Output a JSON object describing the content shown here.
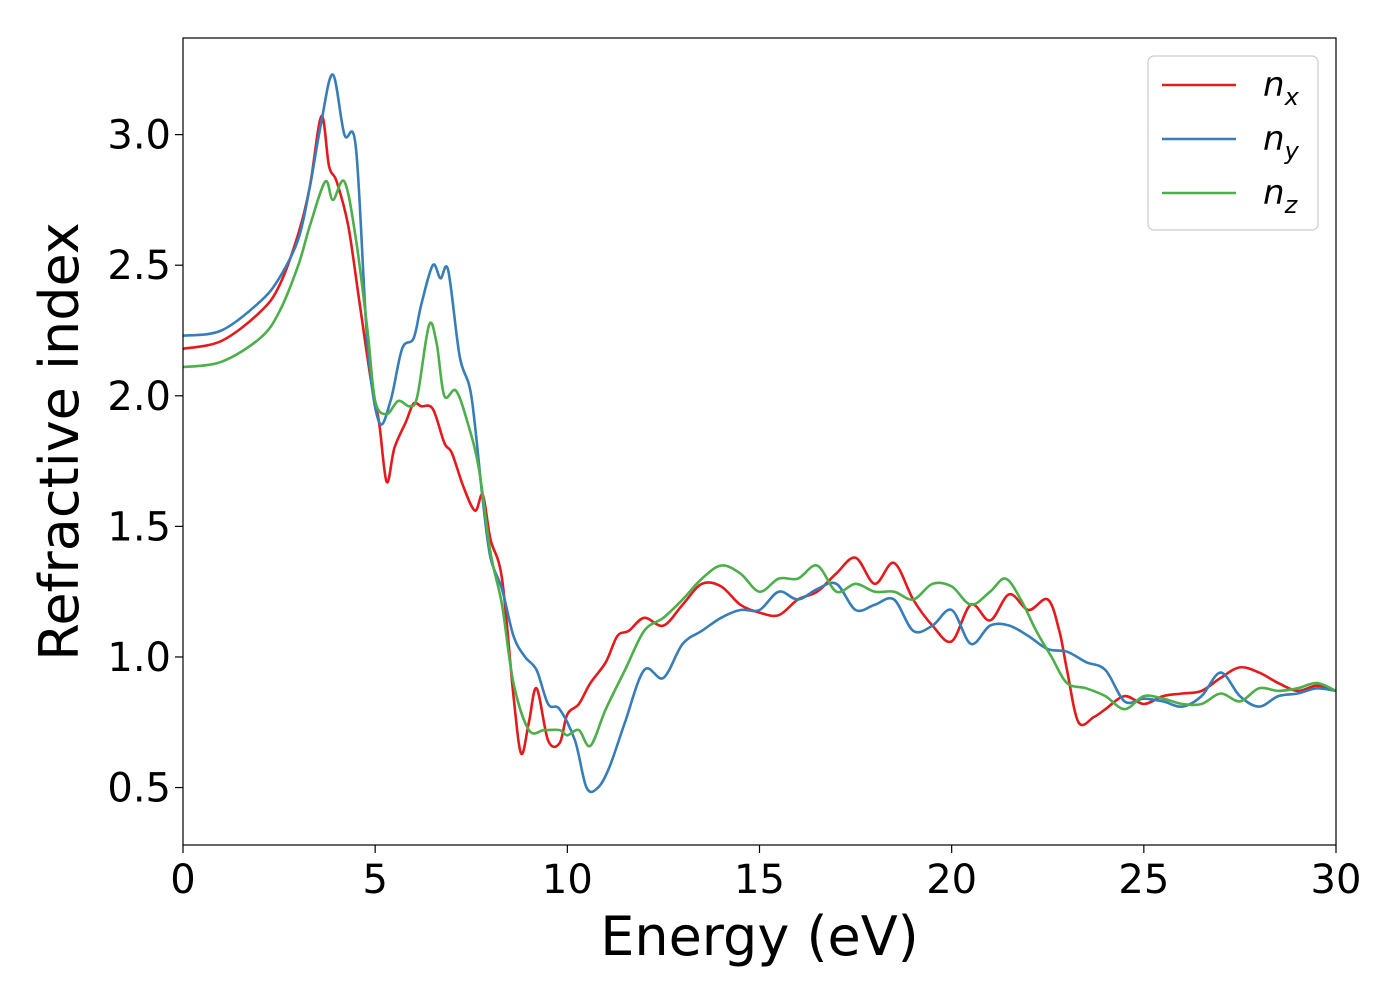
{
  "chart_data": {
    "type": "line",
    "title": "",
    "xlabel": "Energy (eV)",
    "ylabel": "Refractive index",
    "xlim": [
      0,
      30
    ],
    "ylim": [
      0.28,
      3.37
    ],
    "xticks": [
      0,
      5,
      10,
      15,
      20,
      25,
      30
    ],
    "xtick_labels": [
      "0",
      "5",
      "10",
      "15",
      "20",
      "25",
      "30"
    ],
    "yticks": [
      0.5,
      1.0,
      1.5,
      2.0,
      2.5,
      3.0
    ],
    "ytick_labels": [
      "0.5",
      "1.0",
      "1.5",
      "2.0",
      "2.5",
      "3.0"
    ],
    "grid": false,
    "legend_position": "top-right",
    "series": [
      {
        "name": "n_x",
        "legend_base": "n",
        "legend_sub": "x",
        "color": "#e41a1c",
        "x": [
          0,
          1,
          2,
          2.5,
          3,
          3.3,
          3.6,
          3.8,
          4.0,
          4.3,
          4.6,
          4.9,
          5.1,
          5.3,
          5.5,
          5.8,
          6.0,
          6.2,
          6.5,
          6.8,
          7.0,
          7.3,
          7.6,
          7.8,
          8.0,
          8.3,
          8.6,
          8.8,
          9.0,
          9.2,
          9.5,
          9.8,
          10.0,
          10.3,
          10.6,
          11.0,
          11.3,
          11.6,
          12.0,
          12.5,
          13.0,
          13.5,
          14.0,
          14.5,
          15.0,
          15.5,
          16.0,
          16.5,
          17.0,
          17.5,
          18.0,
          18.5,
          19.0,
          19.5,
          20.0,
          20.5,
          21.0,
          21.5,
          22.0,
          22.5,
          22.8,
          23.0,
          23.3,
          23.7,
          24.0,
          24.5,
          25.0,
          25.5,
          26.0,
          26.5,
          27.0,
          27.5,
          28.0,
          28.5,
          29.0,
          29.5,
          30.0
        ],
        "y": [
          2.18,
          2.21,
          2.32,
          2.42,
          2.62,
          2.8,
          3.07,
          2.88,
          2.82,
          2.65,
          2.35,
          2.05,
          1.9,
          1.67,
          1.8,
          1.9,
          1.97,
          1.96,
          1.95,
          1.82,
          1.78,
          1.65,
          1.56,
          1.62,
          1.45,
          1.3,
          0.85,
          0.63,
          0.75,
          0.88,
          0.68,
          0.67,
          0.78,
          0.82,
          0.9,
          0.98,
          1.08,
          1.1,
          1.15,
          1.12,
          1.2,
          1.28,
          1.27,
          1.2,
          1.17,
          1.16,
          1.22,
          1.25,
          1.32,
          1.38,
          1.28,
          1.36,
          1.22,
          1.12,
          1.06,
          1.2,
          1.14,
          1.24,
          1.18,
          1.22,
          1.1,
          0.95,
          0.75,
          0.77,
          0.8,
          0.85,
          0.82,
          0.85,
          0.86,
          0.87,
          0.92,
          0.96,
          0.94,
          0.9,
          0.87,
          0.89,
          0.87
        ]
      },
      {
        "name": "n_y",
        "legend_base": "n",
        "legend_sub": "y",
        "color": "#377eb8",
        "x": [
          0,
          1,
          2,
          2.5,
          3,
          3.3,
          3.6,
          3.9,
          4.2,
          4.5,
          4.8,
          5.1,
          5.4,
          5.7,
          6.0,
          6.2,
          6.5,
          6.7,
          6.9,
          7.2,
          7.5,
          7.8,
          8.0,
          8.3,
          8.6,
          8.9,
          9.2,
          9.5,
          9.8,
          10.2,
          10.5,
          10.8,
          11.1,
          11.5,
          12.0,
          12.5,
          13.0,
          13.5,
          14.0,
          14.5,
          15.0,
          15.5,
          16.0,
          16.5,
          17.0,
          17.5,
          18.0,
          18.5,
          19.0,
          19.5,
          20.0,
          20.5,
          21.0,
          21.5,
          22.0,
          22.5,
          23.0,
          23.5,
          24.0,
          24.5,
          25.0,
          25.5,
          26.0,
          26.5,
          27.0,
          27.5,
          28.0,
          28.5,
          29.0,
          29.5,
          30.0
        ],
        "y": [
          2.23,
          2.25,
          2.36,
          2.45,
          2.6,
          2.8,
          3.05,
          3.23,
          3.0,
          2.95,
          2.2,
          1.9,
          1.98,
          2.18,
          2.22,
          2.35,
          2.5,
          2.45,
          2.48,
          2.15,
          2.0,
          1.6,
          1.38,
          1.26,
          1.08,
          1.0,
          0.95,
          0.82,
          0.8,
          0.68,
          0.5,
          0.5,
          0.58,
          0.75,
          0.95,
          0.92,
          1.05,
          1.1,
          1.15,
          1.18,
          1.18,
          1.25,
          1.22,
          1.26,
          1.28,
          1.18,
          1.2,
          1.22,
          1.1,
          1.12,
          1.18,
          1.05,
          1.12,
          1.12,
          1.08,
          1.03,
          1.02,
          0.98,
          0.95,
          0.83,
          0.84,
          0.83,
          0.81,
          0.85,
          0.94,
          0.85,
          0.81,
          0.85,
          0.86,
          0.88,
          0.87
        ]
      },
      {
        "name": "n_z",
        "legend_base": "n",
        "legend_sub": "z",
        "color": "#4daf4a",
        "x": [
          0,
          1,
          2,
          2.5,
          3,
          3.3,
          3.7,
          3.9,
          4.2,
          4.5,
          4.8,
          5.0,
          5.3,
          5.6,
          5.9,
          6.1,
          6.4,
          6.6,
          6.8,
          7.1,
          7.4,
          7.7,
          8.0,
          8.3,
          8.6,
          9.0,
          9.4,
          9.8,
          10.0,
          10.3,
          10.6,
          11.0,
          11.5,
          12.0,
          12.5,
          13.0,
          13.5,
          14.0,
          14.5,
          15.0,
          15.5,
          16.0,
          16.5,
          17.0,
          17.5,
          18.0,
          18.5,
          19.0,
          19.5,
          20.0,
          20.5,
          21.0,
          21.4,
          21.8,
          22.2,
          22.6,
          23.0,
          23.5,
          24.0,
          24.5,
          25.0,
          25.5,
          26.0,
          26.5,
          27.0,
          27.5,
          28.0,
          28.5,
          29.0,
          29.5,
          30.0
        ],
        "y": [
          2.11,
          2.13,
          2.22,
          2.32,
          2.5,
          2.65,
          2.82,
          2.75,
          2.82,
          2.6,
          2.25,
          1.98,
          1.93,
          1.98,
          1.96,
          2.0,
          2.27,
          2.2,
          2.0,
          2.02,
          1.9,
          1.72,
          1.4,
          1.2,
          0.9,
          0.72,
          0.72,
          0.72,
          0.7,
          0.72,
          0.66,
          0.8,
          0.95,
          1.1,
          1.15,
          1.22,
          1.3,
          1.35,
          1.32,
          1.25,
          1.3,
          1.3,
          1.35,
          1.25,
          1.28,
          1.25,
          1.25,
          1.22,
          1.28,
          1.27,
          1.2,
          1.25,
          1.3,
          1.22,
          1.1,
          1.0,
          0.9,
          0.88,
          0.85,
          0.8,
          0.85,
          0.84,
          0.82,
          0.82,
          0.86,
          0.83,
          0.88,
          0.87,
          0.88,
          0.9,
          0.87
        ]
      }
    ]
  }
}
